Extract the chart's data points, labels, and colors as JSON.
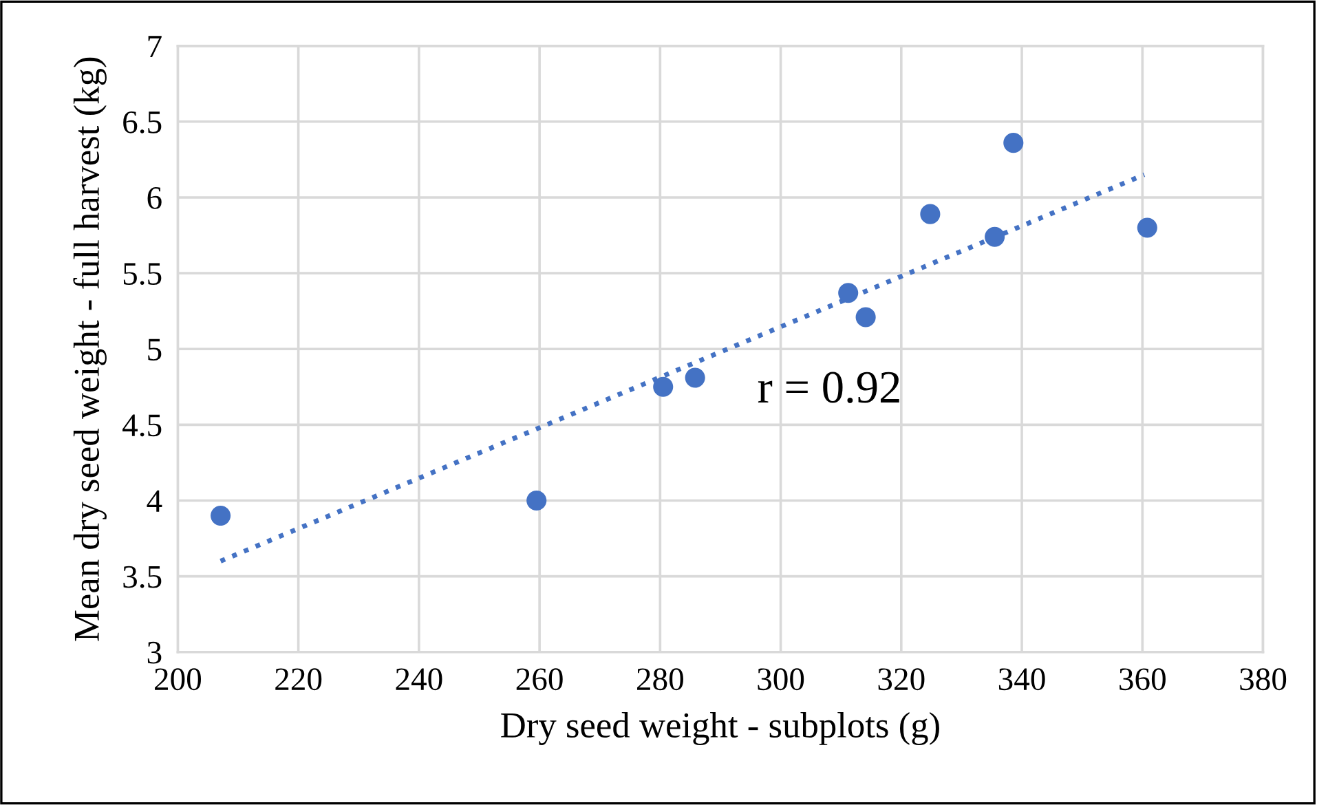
{
  "chart_data": {
    "type": "scatter",
    "xlabel": "Dry seed weight - subplots (g)",
    "ylabel": "Mean dry seed weight - full harvest (kg)",
    "x": [
      207.1,
      259.5,
      280.5,
      285.8,
      311.2,
      314.1,
      324.8,
      335.5,
      338.6,
      360.8
    ],
    "series": [
      {
        "color": "#4472c4",
        "marker": "circle",
        "values": [
          3.9,
          4.0,
          4.75,
          4.81,
          5.37,
          5.21,
          5.89,
          5.74,
          6.36,
          5.8
        ]
      },
      {
        "type": "line",
        "color": "#4472c4",
        "line_style": "dotted",
        "marker": "none",
        "x": [
          207.1,
          360.3
        ],
        "values": [
          3.6,
          6.15
        ]
      }
    ],
    "annotations": [
      "r = 0.92"
    ],
    "xlim": [
      200,
      380
    ],
    "xticks": [
      200,
      220,
      240,
      260,
      280,
      300,
      320,
      340,
      360,
      380
    ],
    "ylim": [
      3,
      7
    ],
    "yticks": [
      3,
      3.5,
      4,
      4.5,
      5,
      5.5,
      6,
      6.5,
      7
    ],
    "grid": true,
    "legend": false
  }
}
